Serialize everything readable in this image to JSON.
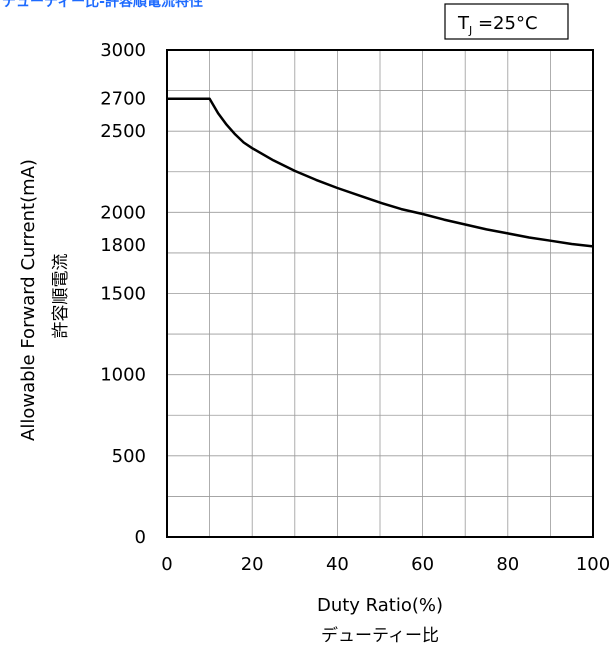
{
  "chart_data": {
    "type": "line",
    "title": "デューティー比-許容順電流特性",
    "condition": {
      "symbol": "T",
      "subscript": "J",
      "text": " =25°C"
    },
    "xlabel": "Duty Ratio(%)",
    "xlabel_jp": "デューティー比",
    "ylabel": "Allowable Forward Current(mA)",
    "ylabel_jp": "許容順電流",
    "xlim": [
      0,
      100
    ],
    "ylim": [
      0,
      3000
    ],
    "x_ticks": [
      0,
      20,
      40,
      60,
      80,
      100
    ],
    "y_ticks": [
      0,
      500,
      1000,
      1500,
      1800,
      2000,
      2500,
      2700,
      3000
    ],
    "grid": true,
    "series": [
      {
        "x": [
          0,
          10,
          12,
          14,
          16,
          18,
          20,
          25,
          30,
          35,
          40,
          45,
          50,
          55,
          60,
          65,
          70,
          75,
          80,
          85,
          90,
          95,
          100
        ],
        "y": [
          2700,
          2700,
          2610,
          2540,
          2480,
          2430,
          2395,
          2320,
          2255,
          2200,
          2150,
          2105,
          2060,
          2020,
          1990,
          1955,
          1925,
          1895,
          1870,
          1845,
          1825,
          1805,
          1790
        ]
      }
    ]
  }
}
